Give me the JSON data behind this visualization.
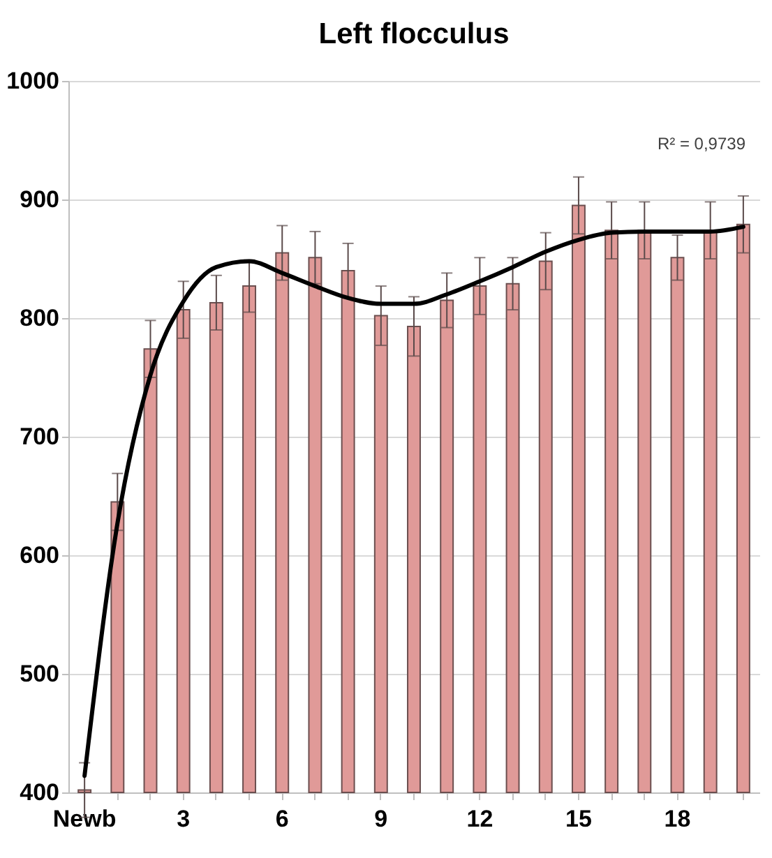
{
  "chart_data": {
    "type": "bar",
    "title": "Left flocculus",
    "categories": [
      "Newb",
      null,
      null,
      "3",
      null,
      null,
      "6",
      null,
      null,
      "9",
      null,
      null,
      "12",
      null,
      null,
      "15",
      null,
      null,
      "18",
      null,
      null
    ],
    "series": [
      {
        "color": "#e09a98",
        "values": [
          402,
          645,
          774,
          807,
          813,
          827,
          855,
          851,
          840,
          802,
          793,
          815,
          827,
          829,
          848,
          895,
          874,
          874,
          851,
          874,
          879
        ],
        "errors": [
          23,
          24,
          24,
          24,
          23,
          22,
          23,
          22,
          23,
          25,
          25,
          23,
          24,
          22,
          24,
          24,
          24,
          24,
          19,
          24,
          24
        ]
      },
      {
        "type": "line",
        "color": "#000000",
        "values": [
          414,
          627,
          752,
          814,
          843,
          848,
          838,
          827,
          817,
          812,
          812,
          820,
          831,
          843,
          856,
          866,
          872,
          873,
          873,
          873,
          877
        ]
      }
    ],
    "ylim": [
      400,
      1000
    ],
    "yticks": [
      400,
      500,
      600,
      700,
      800,
      900,
      1000
    ],
    "grid": "y",
    "annotations": [
      "R² = 0,9739"
    ]
  }
}
